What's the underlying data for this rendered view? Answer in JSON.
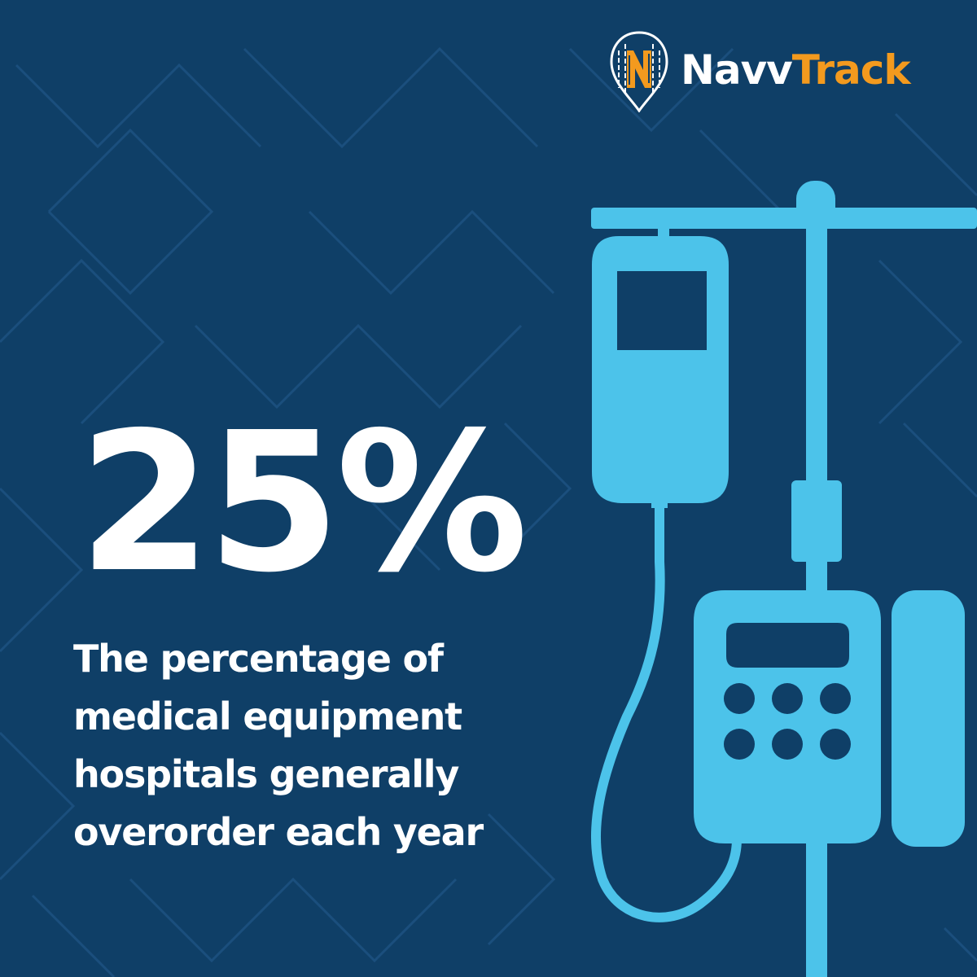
{
  "brand": {
    "name_part1": "Navv",
    "name_part2": "Track",
    "primary_color": "#ffffff",
    "accent_color": "#f39a1e",
    "logo_icon": "map-pin-circuit-icon"
  },
  "headline": {
    "stat": "25%"
  },
  "caption": {
    "lines": [
      "The percentage of",
      "medical equipment",
      "hospitals generally",
      "overorder each year"
    ]
  },
  "illustration": {
    "icon": "iv-infusion-pump-icon",
    "color": "#4cc3ea"
  },
  "colors": {
    "background": "#0f3f67",
    "pattern": "#1a4d7a",
    "text": "#ffffff"
  }
}
